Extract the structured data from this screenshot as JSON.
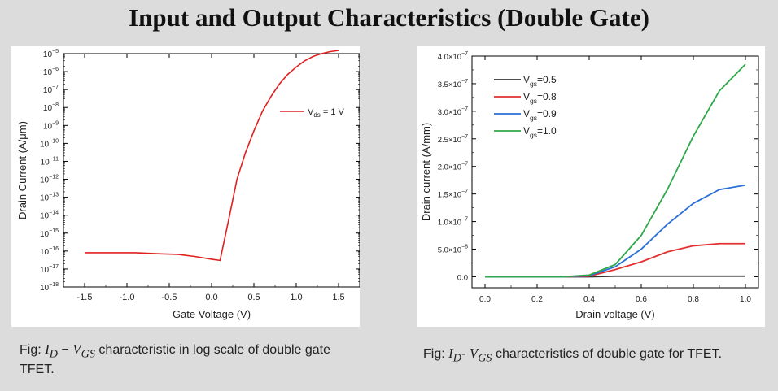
{
  "title": "Input and Output Characteristics (Double Gate)",
  "captions": {
    "left": {
      "prefix": "Fig: ",
      "math_id": "I",
      "math_id_sub": "D",
      "math_dash": " − ",
      "math_vgs": "V",
      "math_vgs_sub": "GS",
      "rest": " characteristic in log scale of double gate TFET."
    },
    "right": {
      "prefix": "Fig: ",
      "math_id": "I",
      "math_id_sub": "D",
      "math_dash": "- ",
      "math_vgs": "V",
      "math_vgs_sub": "GS",
      "rest": " characteristics of double gate for TFET."
    }
  },
  "chart_data": [
    {
      "type": "line",
      "xlabel": "Gate Voltage (V)",
      "ylabel": "Drain Current (A/μm)",
      "xlim": [
        -1.75,
        1.75
      ],
      "ylim_log10": [
        -18,
        -5
      ],
      "y_scale": "log",
      "x_ticks": [
        -1.5,
        -1.0,
        -0.5,
        0.0,
        0.5,
        1.0,
        1.5
      ],
      "x_tick_labels": [
        "-1.5",
        "-1.0",
        "-0.5",
        "0.0",
        "0.5",
        "1.0",
        "1.5"
      ],
      "y_tick_exponents": [
        -5,
        -6,
        -7,
        -8,
        -9,
        -10,
        -11,
        -12,
        -13,
        -14,
        -15,
        -16,
        -17,
        -18
      ],
      "legend_position": "top-right",
      "series": [
        {
          "name": "Vds = 1 V",
          "legend_main": "V",
          "legend_sub": "ds",
          "legend_rest": " = 1 V",
          "color": "#e02020",
          "x": [
            -1.5,
            -1.2,
            -0.9,
            -0.6,
            -0.4,
            -0.2,
            0.0,
            0.1,
            0.2,
            0.3,
            0.4,
            0.5,
            0.6,
            0.7,
            0.8,
            0.9,
            1.0,
            1.1,
            1.2,
            1.3,
            1.4,
            1.5
          ],
          "y": [
            8e-17,
            8e-17,
            8e-17,
            7e-17,
            6.5e-17,
            5e-17,
            3.5e-17,
            3e-17,
            5e-15,
            1e-12,
            3e-11,
            5e-10,
            6e-09,
            4e-08,
            2e-07,
            7e-07,
            1.8e-06,
            4e-06,
            7e-06,
            1e-05,
            1.3e-05,
            1.5e-05
          ]
        }
      ]
    },
    {
      "type": "line",
      "xlabel": "Drain voltage (V)",
      "ylabel": "Drain current (A/mm)",
      "xlim": [
        -0.05,
        1.05
      ],
      "ylim": [
        -2e-08,
        4e-07
      ],
      "x_ticks": [
        0.0,
        0.2,
        0.4,
        0.6,
        0.8,
        1.0
      ],
      "x_tick_labels": [
        "0.0",
        "0.2",
        "0.4",
        "0.6",
        "0.8",
        "1.0"
      ],
      "y_ticks": [
        0,
        5e-08,
        1e-07,
        1.5e-07,
        2e-07,
        2.5e-07,
        3e-07,
        3.5e-07,
        4e-07
      ],
      "y_tick_labels": [
        {
          "main": "0.0",
          "exp": ""
        },
        {
          "main": "5.0×10",
          "exp": "−8"
        },
        {
          "main": "1.0×10",
          "exp": "−7"
        },
        {
          "main": "1.5×10",
          "exp": "−7"
        },
        {
          "main": "2.0×10",
          "exp": "−7"
        },
        {
          "main": "2.5×10",
          "exp": "−7"
        },
        {
          "main": "3.0×10",
          "exp": "−7"
        },
        {
          "main": "3.5×10",
          "exp": "−7"
        },
        {
          "main": "4.0×10",
          "exp": "−7"
        }
      ],
      "legend_position": "top-left",
      "x": [
        0.0,
        0.1,
        0.2,
        0.3,
        0.4,
        0.5,
        0.6,
        0.7,
        0.8,
        0.9,
        1.0
      ],
      "series": [
        {
          "name": "Vgs=0.5",
          "legend_main": "V",
          "legend_sub": "gs",
          "legend_rest": "=0.5",
          "color": "#333333",
          "values": [
            0,
            0,
            0,
            0,
            0,
            1e-09,
            1e-09,
            1e-09,
            1e-09,
            1e-09,
            1e-09
          ]
        },
        {
          "name": "Vgs=0.8",
          "legend_main": "V",
          "legend_sub": "gs",
          "legend_rest": "=0.8",
          "color": "#e03030",
          "values": [
            0,
            0,
            0,
            0,
            1e-09,
            1.3e-08,
            2.7e-08,
            4.5e-08,
            5.6e-08,
            6e-08,
            6e-08
          ]
        },
        {
          "name": "Vgs=0.9",
          "legend_main": "V",
          "legend_sub": "gs",
          "legend_rest": "=0.9",
          "color": "#2a6fd6",
          "values": [
            0,
            0,
            0,
            0,
            2e-09,
            1.8e-08,
            5e-08,
            9.5e-08,
            1.33e-07,
            1.58e-07,
            1.66e-07
          ]
        },
        {
          "name": "Vgs=1.0",
          "legend_main": "V",
          "legend_sub": "gs",
          "legend_rest": "=1.0",
          "color": "#2fa84a",
          "values": [
            0,
            0,
            0,
            0,
            3e-09,
            2.2e-08,
            7.5e-08,
            1.58e-07,
            2.55e-07,
            3.37e-07,
            3.85e-07
          ]
        }
      ]
    }
  ]
}
